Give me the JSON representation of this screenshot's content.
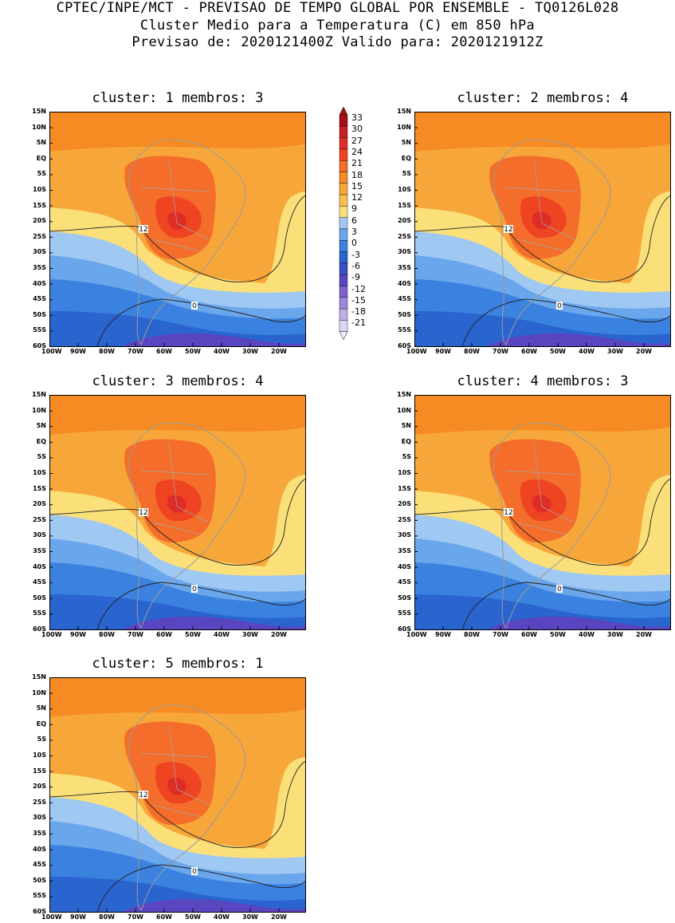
{
  "header": {
    "line1": "CPTEC/INPE/MCT - PREVISAO DE TEMPO GLOBAL POR ENSEMBLE - TQ0126L028",
    "line2": "Cluster Medio para a Temperatura (C) em 850 hPa",
    "line3": "Previsao de: 2020121400Z   Valido para: 2020121912Z"
  },
  "lat_labels": [
    "15N",
    "10N",
    "5N",
    "EQ",
    "5S",
    "10S",
    "15S",
    "20S",
    "25S",
    "30S",
    "35S",
    "40S",
    "45S",
    "50S",
    "55S",
    "60S"
  ],
  "lon_labels": [
    "100W",
    "90W",
    "80W",
    "70W",
    "60W",
    "50W",
    "40W",
    "30W",
    "20W"
  ],
  "colorbar": {
    "levels": [
      "33",
      "30",
      "27",
      "24",
      "21",
      "18",
      "15",
      "12",
      "9",
      "6",
      "3",
      "0",
      "-3",
      "-6",
      "-9",
      "-12",
      "-15",
      "-18",
      "-21"
    ],
    "colors": [
      "#a50f15",
      "#c62025",
      "#de2d26",
      "#ee4422",
      "#f46d2a",
      "#f58b22",
      "#f7a63a",
      "#f9c04f",
      "#fbe07a",
      "#9fc8f2",
      "#6aa6ec",
      "#3b82e0",
      "#2a64cf",
      "#3a4fc4",
      "#5a45c0",
      "#7c62cc",
      "#9c86da",
      "#bfaee8",
      "#ded4f4"
    ]
  },
  "panels": [
    {
      "title": "cluster: 1   membros: 3",
      "contour_12": "12",
      "contour_0": "0"
    },
    {
      "title": "cluster: 2   membros: 4",
      "contour_12": "12",
      "contour_0": "0"
    },
    {
      "title": "cluster: 3   membros: 4",
      "contour_12": "12",
      "contour_0": "0"
    },
    {
      "title": "cluster: 4   membros: 3",
      "contour_12": "12",
      "contour_0": "0"
    },
    {
      "title": "cluster: 5   membros: 1",
      "contour_12": "12",
      "contour_0": "0"
    }
  ]
}
